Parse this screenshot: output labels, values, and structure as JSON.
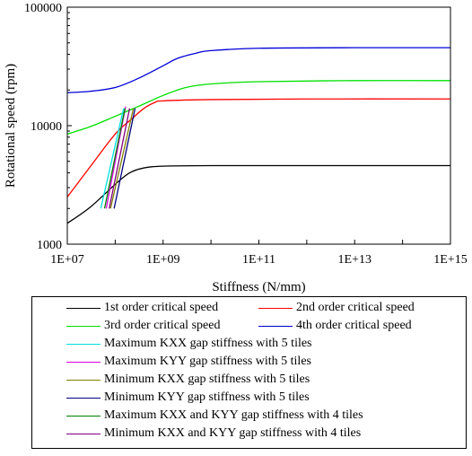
{
  "chart_data": {
    "type": "line",
    "title": "",
    "xlabel": "Stiffness (N/mm)",
    "ylabel": "Rotational speed (rpm)",
    "xscale": "log",
    "yscale": "log",
    "xlim": [
      10000000,
      1000000000000000
    ],
    "ylim": [
      1000,
      100000
    ],
    "xticks": [
      "1E+07",
      "1E+09",
      "1E+11",
      "1E+13",
      "1E+15"
    ],
    "yticks": [
      "1000",
      "10000",
      "100000"
    ],
    "grid": false,
    "legend_position": "bottom",
    "series": [
      {
        "name": "1st order critical speed",
        "color": "#000000",
        "x": [
          10000000,
          30000000,
          100000000,
          200000000,
          400000000,
          1000000000,
          10000000000,
          1000000000000,
          1000000000000000
        ],
        "y": [
          1500,
          2050,
          3200,
          4000,
          4400,
          4550,
          4600,
          4600,
          4600
        ]
      },
      {
        "name": "2nd order critical speed",
        "color": "#ff0000",
        "x": [
          10000000,
          30000000,
          100000000,
          200000000,
          400000000,
          700000000,
          1000000000,
          10000000000,
          1000000000000,
          1000000000000000
        ],
        "y": [
          2500,
          4500,
          8500,
          11000,
          14000,
          15800,
          16200,
          16600,
          16800,
          16800
        ]
      },
      {
        "name": "3rd order critical speed",
        "color": "#00e000",
        "x": [
          10000000,
          30000000,
          100000000,
          300000000,
          1000000000,
          3000000000,
          10000000000,
          100000000000,
          10000000000000,
          1000000000000000
        ],
        "y": [
          8500,
          9800,
          12000,
          14500,
          18000,
          21000,
          22500,
          23500,
          24000,
          24000
        ]
      },
      {
        "name": "4th order critical speed",
        "color": "#0000d8",
        "x": [
          10000000,
          30000000,
          100000000,
          300000000,
          1000000000,
          2000000000,
          5000000000,
          10000000000,
          100000000000,
          10000000000000,
          1000000000000000
        ],
        "y": [
          19000,
          19500,
          21000,
          25000,
          32000,
          37000,
          41000,
          43000,
          45000,
          45500,
          45500
        ]
      },
      {
        "name": "Maximum KXX gap stiffness with 5 tiles",
        "color": "#00e0e0",
        "x": [
          50000000,
          150000000
        ],
        "y": [
          2000,
          14000
        ]
      },
      {
        "name": "Maximum KYY gap stiffness with 5 tiles",
        "color": "#e000e0",
        "x": [
          65000000,
          165000000
        ],
        "y": [
          2000,
          14500
        ]
      },
      {
        "name": "Minimum KXX gap stiffness with 5 tiles",
        "color": "#808000",
        "x": [
          80000000,
          240000000
        ],
        "y": [
          2000,
          14000
        ]
      },
      {
        "name": "Minimum KYY gap stiffness with 5 tiles",
        "color": "#000080",
        "x": [
          95000000,
          260000000
        ],
        "y": [
          2000,
          14000
        ]
      },
      {
        "name": "Maximum KXX and KYY gap stiffness with 4 tiles",
        "color": "#008000",
        "x": [
          60000000,
          160000000
        ],
        "y": [
          2000,
          14000
        ]
      },
      {
        "name": "Minimum KXX and KYY gap stiffness with 4 tiles",
        "color": "#800080",
        "x": [
          75000000,
          200000000
        ],
        "y": [
          2000,
          14000
        ]
      }
    ]
  },
  "legend": {
    "items": [
      {
        "label": "1st order critical speed",
        "color": "#000000"
      },
      {
        "label": "2nd order critical speed",
        "color": "#ff0000"
      },
      {
        "label": "3rd order critical speed",
        "color": "#00e000"
      },
      {
        "label": "4th order critical speed",
        "color": "#0000d8"
      },
      {
        "label": "Maximum KXX gap stiffness with 5 tiles",
        "color": "#00e0e0"
      },
      {
        "label": "Maximum KYY gap stiffness with 5 tiles",
        "color": "#e000e0"
      },
      {
        "label": "Minimum KXX gap stiffness with 5 tiles",
        "color": "#808000"
      },
      {
        "label": "Minimum KYY gap stiffness with 5 tiles",
        "color": "#000080"
      },
      {
        "label": "Maximum KXX and KYY gap stiffness with 4 tiles",
        "color": "#008000"
      },
      {
        "label": "Minimum KXX and KYY gap stiffness with 4 tiles",
        "color": "#800080"
      }
    ]
  }
}
